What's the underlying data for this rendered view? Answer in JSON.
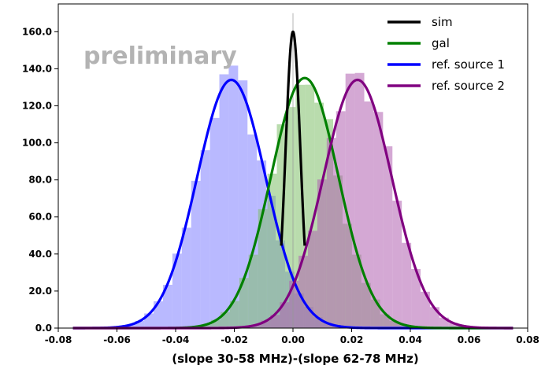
{
  "chart_data": {
    "type": "histogram",
    "xlabel": "(slope 30-58 MHz)-(slope 62-78 MHz)",
    "ylabel": "",
    "xlim": [
      -0.08,
      0.08
    ],
    "ylim": [
      0,
      175
    ],
    "x_ticks": [
      "-0.08",
      "-0.06",
      "-0.04",
      "-0.02",
      "0.00",
      "0.02",
      "0.04",
      "0.06",
      "0.08"
    ],
    "y_ticks": [
      "0.0",
      "20.0",
      "40.0",
      "60.0",
      "80.0",
      "100.0",
      "120.0",
      "140.0",
      "160.0"
    ],
    "annotation": "preliminary",
    "legend_position": "upper-right",
    "series": [
      {
        "name": "sim",
        "color": "#000000",
        "mean": 0.0,
        "sigma": 0.0025,
        "peak": 160,
        "histogram_peak": 170,
        "line_range": [
          -0.004,
          0.004
        ]
      },
      {
        "name": "gal",
        "color": "#008000",
        "hist_color": "#7fbf6a",
        "mean": 0.004,
        "sigma": 0.0115,
        "peak": 135,
        "line_range": [
          -0.075,
          0.075
        ]
      },
      {
        "name": "ref. source 1",
        "color": "#0000ff",
        "hist_color": "#8080ff",
        "mean": -0.021,
        "sigma": 0.0117,
        "peak": 134,
        "line_range": [
          -0.075,
          0.075
        ]
      },
      {
        "name": "ref. source 2",
        "color": "#800080",
        "hist_color": "#b060b0",
        "mean": 0.022,
        "sigma": 0.0117,
        "peak": 134,
        "line_range": [
          -0.075,
          0.075
        ]
      }
    ]
  }
}
